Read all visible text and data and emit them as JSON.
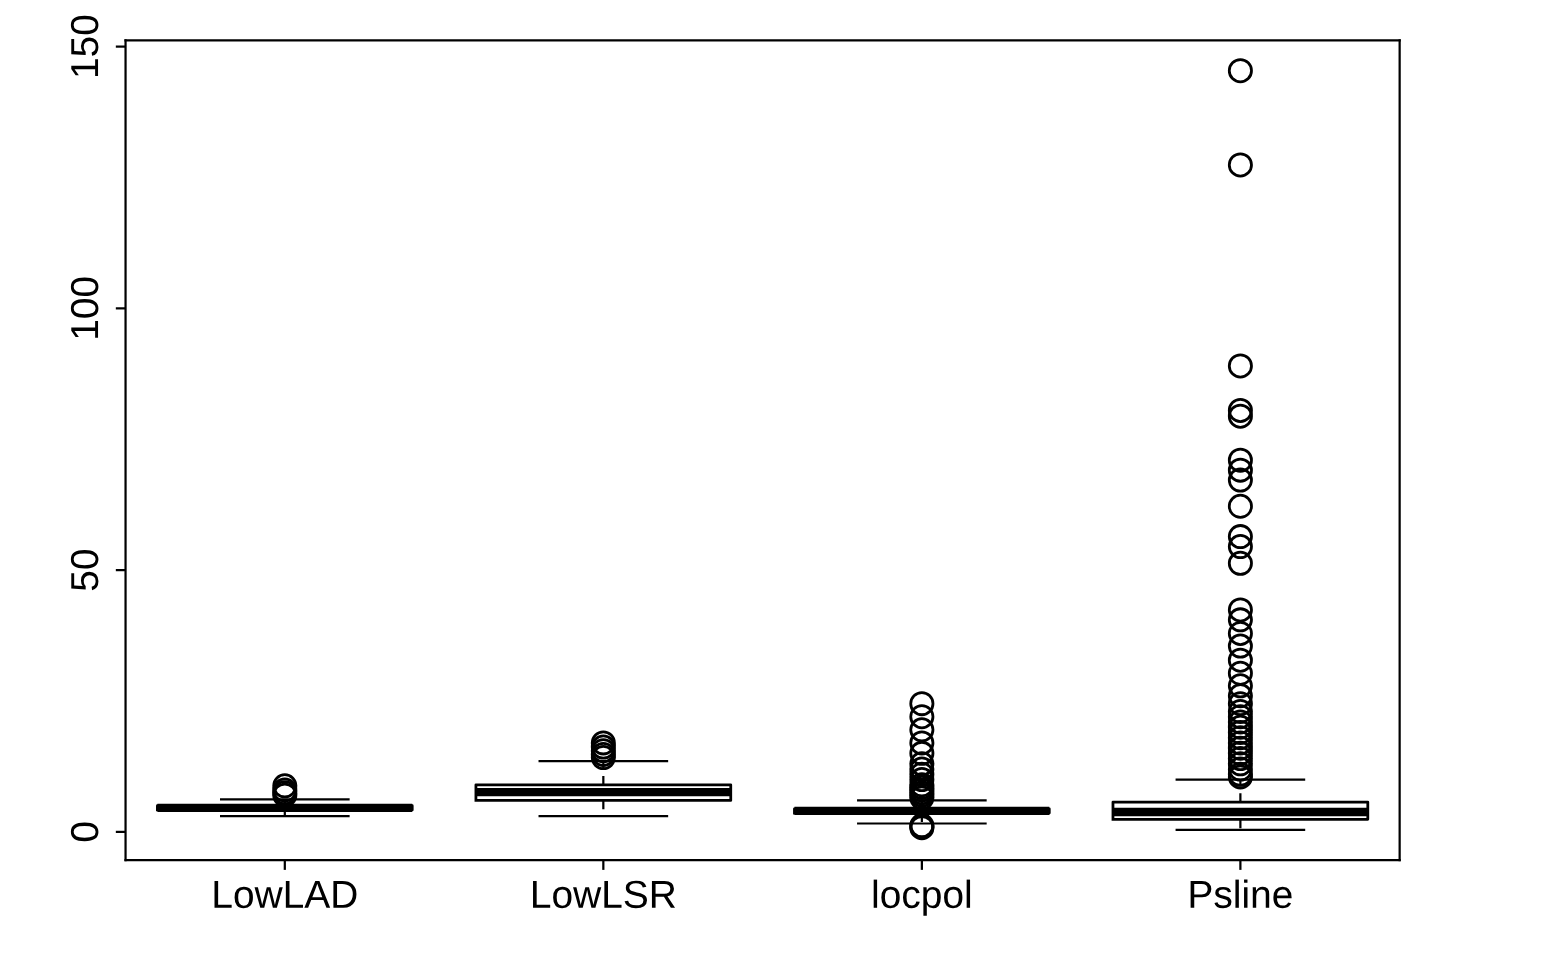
{
  "chart_data": {
    "type": "box",
    "categories": [
      "LowLAD",
      "LowLSR",
      "locpol",
      "Psline"
    ],
    "boxes": [
      {
        "low": 3.0,
        "q1": 4.2,
        "median": 4.6,
        "q3": 5.0,
        "high": 6.2,
        "outliers": [
          7.0,
          7.5,
          8.0,
          8.8
        ]
      },
      {
        "low": 3.0,
        "q1": 6.0,
        "median": 7.6,
        "q3": 9.0,
        "high": 13.5,
        "outliers": [
          14.2,
          14.8,
          15.5,
          16.2,
          17.0
        ]
      },
      {
        "low": 1.6,
        "q1": 3.6,
        "median": 4.0,
        "q3": 4.4,
        "high": 6.0,
        "outliers": [
          0.8,
          1.0,
          1.2,
          6.5,
          7.0,
          7.5,
          8.0,
          8.5,
          9.0,
          10.0,
          11.0,
          12.0,
          13.0,
          15.0,
          17.0,
          19.5,
          22.0,
          24.5
        ]
      },
      {
        "low": 0.4,
        "q1": 2.4,
        "median": 3.8,
        "q3": 5.7,
        "high": 10.0,
        "outliers": [
          10.5,
          11,
          12,
          13,
          14,
          15,
          16,
          17,
          18,
          19,
          20,
          21,
          22,
          23,
          24.5,
          26,
          27.9,
          30.3,
          32.8,
          35.5,
          37.9,
          40.5,
          42.4,
          51.3,
          54.5,
          56.4,
          62.2,
          67.2,
          69.1,
          71.0,
          79.4,
          80.5,
          89.0,
          127.4,
          145.4
        ]
      }
    ],
    "ylim": [
      -5.4,
      151.2
    ],
    "yticks": [
      0,
      50,
      100,
      150
    ],
    "grid": false,
    "marker": "circle"
  }
}
